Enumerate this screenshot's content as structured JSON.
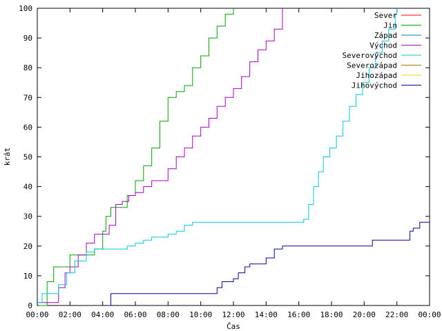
{
  "chart_data": {
    "type": "line",
    "xlabel": "Čas",
    "ylabel": "krát",
    "x_tick_labels": [
      "00:00",
      "02:00",
      "04:00",
      "06:00",
      "08:00",
      "10:00",
      "12:00",
      "14:00",
      "16:00",
      "18:00",
      "20:00",
      "22:00",
      "00:00"
    ],
    "xlim": [
      0,
      24
    ],
    "ylim": [
      0,
      100
    ],
    "y_ticks": [
      0,
      10,
      20,
      30,
      40,
      50,
      60,
      70,
      80,
      90,
      100
    ],
    "grid": false,
    "legend_position": "top-right",
    "series": [
      {
        "name": "Sever",
        "color": "#ff0000",
        "x": [],
        "y": []
      },
      {
        "name": "Jin",
        "color": "#00a000",
        "x": [
          0.1,
          0.6,
          1.0,
          1.5,
          2.0,
          2.5,
          3.0,
          3.5,
          4.0,
          4.2,
          4.5,
          5.0,
          5.5,
          6.0,
          6.5,
          7.0,
          7.5,
          8.0,
          8.5,
          9.0,
          9.5,
          10.0,
          10.5,
          11.0,
          11.5,
          12.0
        ],
        "y": [
          0,
          8,
          13,
          13,
          17,
          17,
          17,
          19,
          25,
          30,
          33,
          33,
          37,
          42,
          47,
          53,
          62,
          70,
          72,
          74,
          80,
          84,
          90,
          94,
          98,
          100
        ]
      },
      {
        "name": "Západ",
        "color": "#0080a0",
        "x": [],
        "y": []
      },
      {
        "name": "Východ",
        "color": "#a000c0",
        "x": [
          0,
          0.9,
          1.3,
          1.7,
          2.0,
          2.5,
          3.0,
          3.5,
          4.0,
          4.4,
          4.8,
          5.2,
          5.6,
          6.0,
          6.5,
          7.0,
          7.5,
          8.0,
          8.5,
          9.0,
          9.5,
          10.0,
          10.5,
          11.0,
          11.5,
          12.0,
          12.5,
          13.0,
          13.5,
          14.0,
          14.5,
          15.0
        ],
        "y": [
          1,
          1,
          6,
          11,
          13,
          17,
          21,
          24,
          24,
          27,
          34,
          35,
          37,
          38,
          40,
          42,
          42,
          46,
          50,
          53,
          57,
          60,
          63,
          67,
          70,
          73,
          77,
          82,
          86,
          89,
          93,
          100
        ]
      },
      {
        "name": "Severovýchod",
        "color": "#00c8e0",
        "x": [
          0,
          0.3,
          0.8,
          1.3,
          1.8,
          2.3,
          3.0,
          3.5,
          4.0,
          4.5,
          5.0,
          5.5,
          6.0,
          6.5,
          7.0,
          7.5,
          8.0,
          8.5,
          9.0,
          9.5,
          10.0,
          11.0,
          12.0,
          13.0,
          14.0,
          15.0,
          16.0,
          16.3,
          16.6,
          16.9,
          17.2,
          17.5,
          17.9,
          18.3,
          18.7,
          19.1,
          19.5,
          19.9,
          20.3,
          20.7,
          21.1,
          21.5,
          21.9,
          22.0
        ],
        "y": [
          1,
          4,
          4,
          7,
          11,
          15,
          18,
          19,
          19,
          19,
          19,
          20,
          21,
          22,
          23,
          23,
          24,
          25,
          27,
          28,
          28,
          28,
          28,
          28,
          28,
          28,
          28,
          29,
          34,
          40,
          45,
          50,
          53,
          57,
          62,
          67,
          71,
          75,
          80,
          85,
          89,
          93,
          98,
          100
        ]
      },
      {
        "name": "Severozápad",
        "color": "#c07000",
        "x": [],
        "y": []
      },
      {
        "name": "Jihozápad",
        "color": "#ffd000",
        "x": [],
        "y": []
      },
      {
        "name": "Jihovýchod",
        "color": "#0000a0",
        "x": [
          0,
          4.25,
          4.35,
          4.5,
          5.0,
          6.0,
          7.0,
          8.0,
          9.0,
          10.0,
          10.9,
          11.0,
          11.3,
          11.7,
          12.0,
          12.3,
          12.7,
          13.0,
          13.5,
          14.0,
          14.5,
          15.0,
          16.0,
          17.0,
          18.0,
          19.0,
          20.0,
          20.5,
          21.0,
          22.0,
          22.5,
          22.8,
          23.0,
          23.4,
          24.0
        ],
        "y": [
          null,
          null,
          0,
          4,
          4,
          4,
          4,
          4,
          4,
          4,
          4,
          6,
          8,
          8,
          9,
          11,
          13,
          14,
          14,
          16,
          19,
          20,
          20,
          20,
          20,
          20,
          20,
          22,
          22,
          22,
          22,
          25,
          26,
          28,
          28
        ]
      }
    ]
  }
}
